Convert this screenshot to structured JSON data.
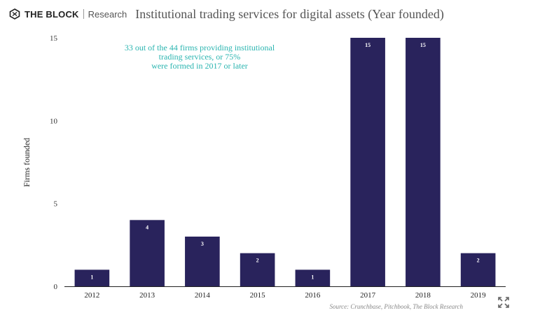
{
  "header": {
    "brand": "THE BLOCK",
    "brand_sub": "Research",
    "title": "Institutional trading services for digital assets (Year founded)"
  },
  "source": "Source: Crunchbase, Pitchbook, The Block Research",
  "icons": {
    "logo": "the-block-logo-icon",
    "expand": "expand-icon"
  },
  "colors": {
    "bar": "#29235c",
    "annotation": "#2bb5b0",
    "axis": "#222222",
    "label_on_bar": "#ffffff"
  },
  "chart_data": {
    "type": "bar",
    "categories": [
      "2012",
      "2013",
      "2014",
      "2015",
      "2016",
      "2017",
      "2018",
      "2019"
    ],
    "values": [
      1,
      4,
      3,
      2,
      1,
      15,
      15,
      2
    ],
    "data_labels": [
      "1",
      "4",
      "3",
      "2",
      "1",
      "15",
      "15",
      "2"
    ],
    "xlabel": "",
    "ylabel": "Firms founded",
    "ylim": [
      0,
      15
    ],
    "yticks": [
      0,
      5,
      10,
      15
    ],
    "grid": false,
    "annotation": [
      "33 out of the 44 firms providing institutional",
      "trading services, or 75%",
      "were formed in 2017 or later"
    ]
  }
}
